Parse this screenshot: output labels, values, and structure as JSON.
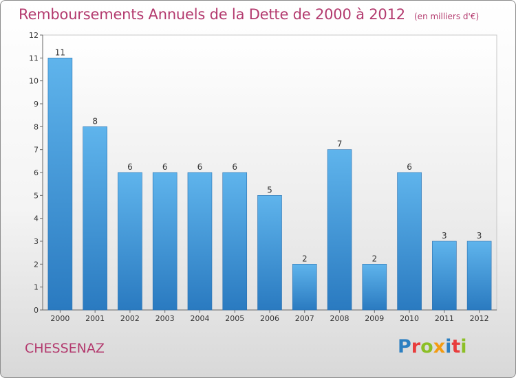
{
  "title": "Remboursements Annuels de la Dette de 2000 à 2012",
  "unit_note": "(en milliers d'€)",
  "commune": "CHESSENAZ",
  "logo": {
    "text": "Proxiti",
    "colors": [
      "#2c7fc1",
      "#e83d3d",
      "#8cbf26",
      "#f39c12",
      "#2c7fc1",
      "#e83d3d",
      "#8cbf26"
    ]
  },
  "colors": {
    "bar_light": "#5fb4ec",
    "bar_dark": "#2a7ac0",
    "title": "#b33a6e"
  },
  "chart_data": {
    "type": "bar",
    "title": "Remboursements Annuels de la Dette de 2000 à 2012",
    "categories": [
      "2000",
      "2001",
      "2002",
      "2003",
      "2004",
      "2005",
      "2006",
      "2007",
      "2008",
      "2009",
      "2010",
      "2011",
      "2012"
    ],
    "values": [
      11,
      8,
      6,
      6,
      6,
      6,
      5,
      2,
      7,
      2,
      6,
      3,
      3
    ],
    "ylim": [
      0,
      12
    ],
    "yticks": [
      0,
      1,
      2,
      3,
      4,
      5,
      6,
      7,
      8,
      9,
      10,
      11,
      12
    ],
    "grid": false,
    "data_labels": true
  }
}
